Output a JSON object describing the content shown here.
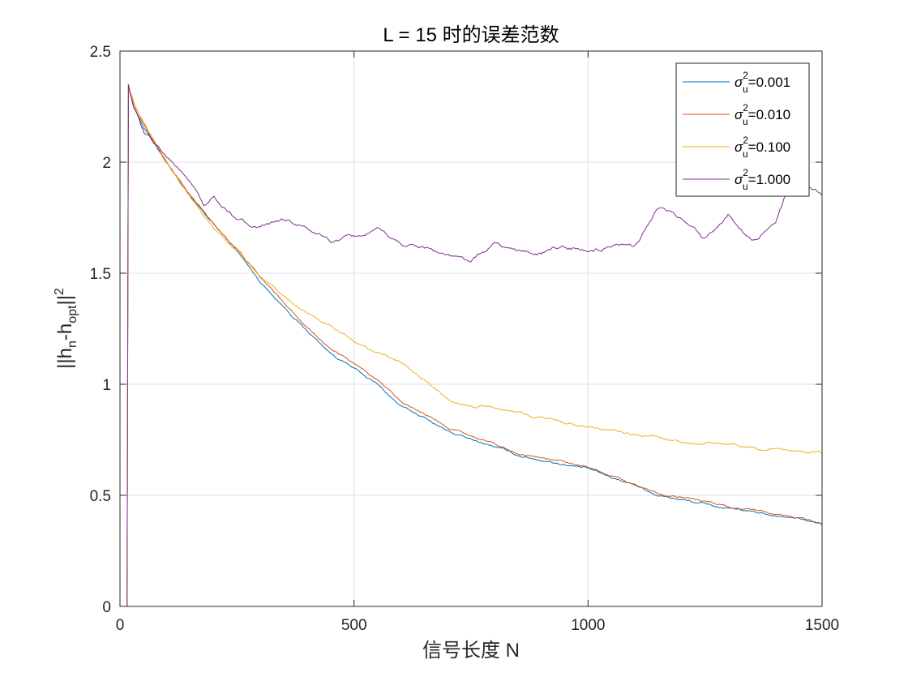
{
  "chart_data": {
    "type": "line",
    "title": "L = 15 时的误差范数",
    "xlabel": "信号长度 N",
    "ylabel": {
      "base1": "||h",
      "sub1": "n",
      "base2": "-h",
      "sub2": "opt",
      "base3": "||",
      "sup": "2"
    },
    "xlim": [
      0,
      1500
    ],
    "ylim": [
      0,
      2.5
    ],
    "xticks": [
      "0",
      "500",
      "1000",
      "1500"
    ],
    "yticks": [
      "0",
      "0.5",
      "1",
      "1.5",
      "2",
      "2.5"
    ],
    "grid": true,
    "legend_position": "top-right",
    "series": [
      {
        "symbol": "σ",
        "sub": "u",
        "sup": "2",
        "value_text": "=0.001",
        "color": "#0072BD",
        "x": [
          15,
          18,
          30,
          50,
          100,
          150,
          200,
          250,
          300,
          350,
          400,
          450,
          500,
          550,
          600,
          650,
          700,
          750,
          800,
          850,
          900,
          1000,
          1050,
          1100,
          1150,
          1200,
          1300,
          1400,
          1450,
          1500
        ],
        "y": [
          0,
          2.35,
          2.25,
          2.16,
          2.0,
          1.84,
          1.72,
          1.6,
          1.46,
          1.35,
          1.24,
          1.14,
          1.07,
          1.0,
          0.9,
          0.85,
          0.79,
          0.75,
          0.72,
          0.68,
          0.66,
          0.62,
          0.58,
          0.55,
          0.5,
          0.48,
          0.44,
          0.41,
          0.395,
          0.37
        ]
      },
      {
        "symbol": "σ",
        "sub": "u",
        "sup": "2",
        "value_text": "=0.010",
        "color": "#D95319",
        "x": [
          15,
          18,
          30,
          50,
          100,
          150,
          200,
          250,
          300,
          350,
          400,
          450,
          500,
          550,
          600,
          650,
          700,
          750,
          800,
          850,
          900,
          1000,
          1050,
          1100,
          1150,
          1200,
          1300,
          1400,
          1450,
          1500
        ],
        "y": [
          0,
          2.35,
          2.25,
          2.17,
          2.0,
          1.85,
          1.72,
          1.61,
          1.48,
          1.37,
          1.26,
          1.16,
          1.09,
          1.02,
          0.92,
          0.87,
          0.81,
          0.77,
          0.73,
          0.69,
          0.67,
          0.63,
          0.59,
          0.55,
          0.51,
          0.49,
          0.45,
          0.42,
          0.4,
          0.375
        ]
      },
      {
        "symbol": "σ",
        "sub": "u",
        "sup": "2",
        "value_text": "=0.100",
        "color": "#EDB120",
        "x": [
          15,
          18,
          30,
          50,
          100,
          150,
          200,
          250,
          300,
          350,
          400,
          450,
          500,
          550,
          600,
          650,
          700,
          750,
          800,
          850,
          900,
          1000,
          1050,
          1100,
          1150,
          1200,
          1300,
          1400,
          1450,
          1500
        ],
        "y": [
          0,
          2.35,
          2.27,
          2.18,
          2.0,
          1.84,
          1.71,
          1.6,
          1.48,
          1.4,
          1.32,
          1.26,
          1.19,
          1.14,
          1.1,
          1.02,
          0.93,
          0.9,
          0.89,
          0.87,
          0.85,
          0.81,
          0.79,
          0.77,
          0.76,
          0.74,
          0.73,
          0.7,
          0.7,
          0.69
        ]
      },
      {
        "symbol": "σ",
        "sub": "u",
        "sup": "2",
        "value_text": "=1.000",
        "color": "#7E2F8E",
        "x": [
          15,
          18,
          25,
          50,
          80,
          100,
          130,
          160,
          180,
          200,
          215,
          250,
          300,
          350,
          400,
          450,
          500,
          550,
          600,
          650,
          700,
          750,
          800,
          850,
          900,
          950,
          1000,
          1050,
          1100,
          1150,
          1200,
          1250,
          1300,
          1350,
          1400,
          1420,
          1450,
          1480,
          1500
        ],
        "y": [
          0,
          2.35,
          2.28,
          2.13,
          2.07,
          2.03,
          1.96,
          1.87,
          1.79,
          1.84,
          1.8,
          1.75,
          1.7,
          1.74,
          1.7,
          1.64,
          1.66,
          1.69,
          1.63,
          1.62,
          1.58,
          1.55,
          1.63,
          1.6,
          1.59,
          1.62,
          1.6,
          1.61,
          1.62,
          1.8,
          1.74,
          1.65,
          1.77,
          1.65,
          1.72,
          1.83,
          1.9,
          1.87,
          1.85
        ]
      }
    ]
  }
}
